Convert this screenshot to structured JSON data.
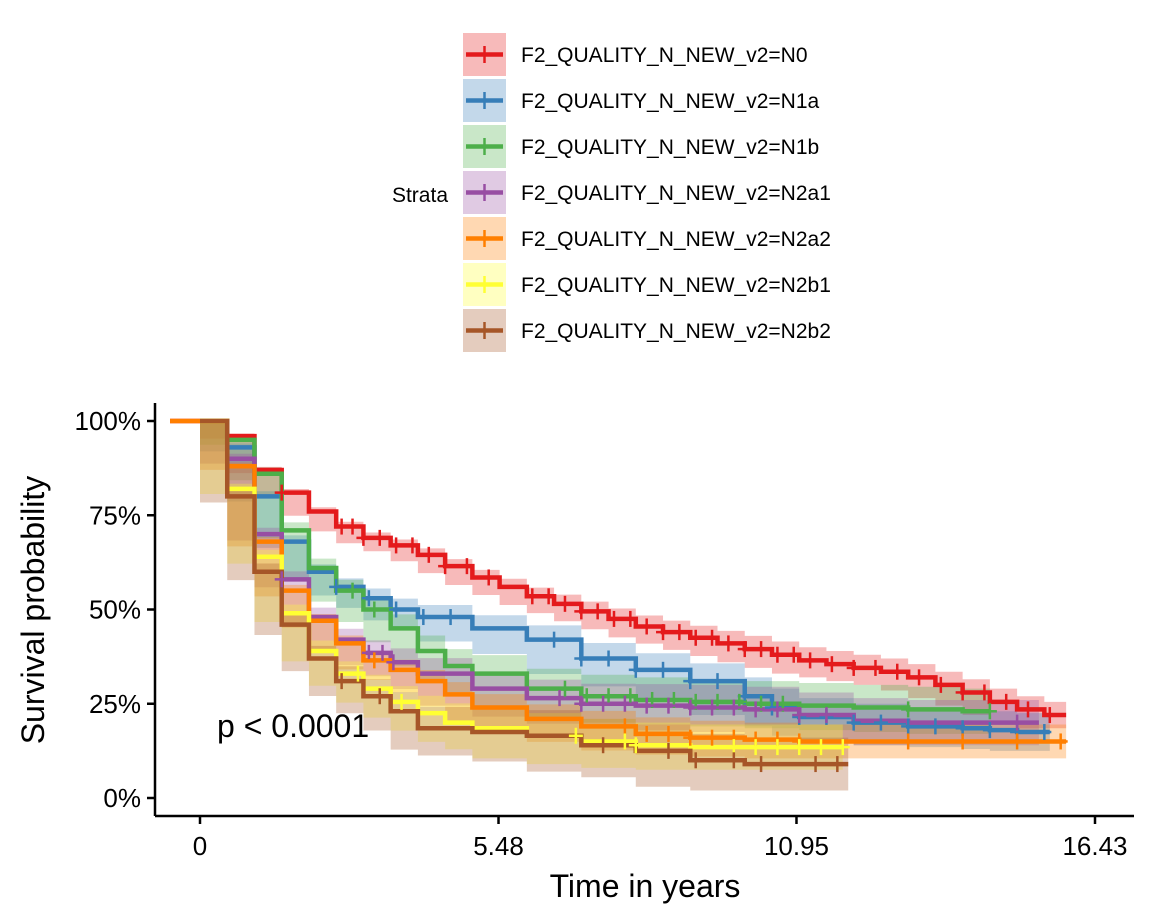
{
  "chart_data": {
    "type": "line",
    "subtype": "kaplan-meier",
    "xlabel": "Time in years",
    "ylabel": "Survival probability",
    "xlim": [
      -1.1,
      17.4
    ],
    "ylim": [
      -0.05,
      1.05
    ],
    "x_ticks": [
      0,
      5.48,
      10.95,
      16.43
    ],
    "x_tick_labels": [
      "0",
      "5.48",
      "10.95",
      "16.43"
    ],
    "y_ticks": [
      0,
      0.25,
      0.5,
      0.75,
      1.0
    ],
    "y_tick_labels": [
      "0%",
      "25%",
      "50%",
      "75%",
      "100%"
    ],
    "annotation": "p <  0.0001",
    "legend_title": "Strata",
    "legend_position": "top",
    "grid": false,
    "series": [
      {
        "name": "F2_QUALITY_N_NEW_v2=N0",
        "color": "#E41A1C",
        "points": [
          [
            -0.55,
            1.0
          ],
          [
            0,
            1.0
          ],
          [
            0.5,
            0.96
          ],
          [
            1,
            0.87
          ],
          [
            1.5,
            0.81
          ],
          [
            2,
            0.76
          ],
          [
            2.5,
            0.72
          ],
          [
            3,
            0.69
          ],
          [
            3.5,
            0.67
          ],
          [
            4,
            0.645
          ],
          [
            4.5,
            0.615
          ],
          [
            5,
            0.585
          ],
          [
            5.5,
            0.56
          ],
          [
            6,
            0.535
          ],
          [
            6.5,
            0.515
          ],
          [
            7,
            0.495
          ],
          [
            7.5,
            0.475
          ],
          [
            8,
            0.455
          ],
          [
            8.5,
            0.44
          ],
          [
            9,
            0.425
          ],
          [
            9.5,
            0.41
          ],
          [
            10,
            0.395
          ],
          [
            10.5,
            0.38
          ],
          [
            11,
            0.365
          ],
          [
            11.5,
            0.355
          ],
          [
            12,
            0.345
          ],
          [
            12.5,
            0.335
          ],
          [
            13,
            0.32
          ],
          [
            13.5,
            0.3
          ],
          [
            14,
            0.28
          ],
          [
            14.5,
            0.255
          ],
          [
            15,
            0.235
          ],
          [
            15.5,
            0.22
          ],
          [
            15.9,
            0.22
          ]
        ],
        "ci": 0.035,
        "censor_x": [
          1.5,
          2.6,
          2.8,
          3.0,
          3.3,
          3.6,
          3.9,
          4.2,
          4.5,
          4.9,
          5.3,
          6.1,
          6.4,
          6.7,
          7.0,
          7.3,
          7.6,
          7.9,
          8.2,
          8.5,
          8.8,
          9.1,
          9.4,
          9.7,
          10.0,
          10.3,
          10.6,
          10.9,
          11.2,
          11.6,
          12.0,
          12.4,
          12.8,
          13.2,
          13.6,
          14.0,
          14.4,
          14.8,
          15.2,
          15.6
        ]
      },
      {
        "name": "F2_QUALITY_N_NEW_v2=N1a",
        "color": "#377EB8",
        "points": [
          [
            0,
            1.0
          ],
          [
            0.5,
            0.93
          ],
          [
            1,
            0.8
          ],
          [
            1.5,
            0.68
          ],
          [
            2,
            0.6
          ],
          [
            2.5,
            0.56
          ],
          [
            3,
            0.53
          ],
          [
            3.5,
            0.5
          ],
          [
            4,
            0.48
          ],
          [
            5,
            0.45
          ],
          [
            6,
            0.42
          ],
          [
            7,
            0.37
          ],
          [
            8,
            0.34
          ],
          [
            9,
            0.31
          ],
          [
            10,
            0.27
          ],
          [
            10.5,
            0.24
          ],
          [
            11,
            0.215
          ],
          [
            12,
            0.2
          ],
          [
            13,
            0.19
          ],
          [
            14,
            0.185
          ],
          [
            14.5,
            0.18
          ],
          [
            15,
            0.175
          ],
          [
            15.6,
            0.175
          ]
        ],
        "ci": 0.05,
        "censor_x": [
          2.5,
          3.1,
          3.6,
          4.1,
          4.6,
          6.5,
          7.0,
          7.5,
          8.0,
          8.5,
          9.0,
          9.5,
          10.0,
          10.5,
          11.0,
          11.5,
          12.0,
          12.5,
          13.0,
          13.5,
          14.0,
          14.5,
          15.0,
          15.5
        ]
      },
      {
        "name": "F2_QUALITY_N_NEW_v2=N1b",
        "color": "#4DAF4A",
        "points": [
          [
            0,
            1.0
          ],
          [
            0.5,
            0.95
          ],
          [
            1,
            0.86
          ],
          [
            1.5,
            0.71
          ],
          [
            2,
            0.61
          ],
          [
            2.5,
            0.55
          ],
          [
            3,
            0.5
          ],
          [
            3.5,
            0.45
          ],
          [
            4,
            0.39
          ],
          [
            4.5,
            0.35
          ],
          [
            5,
            0.33
          ],
          [
            6,
            0.29
          ],
          [
            7,
            0.27
          ],
          [
            8,
            0.26
          ],
          [
            9,
            0.255
          ],
          [
            10,
            0.25
          ],
          [
            11,
            0.245
          ],
          [
            12,
            0.24
          ],
          [
            13,
            0.235
          ],
          [
            14,
            0.23
          ],
          [
            14.5,
            0.23
          ]
        ],
        "ci": 0.06,
        "censor_x": [
          2.8,
          3.2,
          6.7,
          7.1,
          7.5,
          7.9,
          8.3,
          8.7,
          9.1,
          9.5,
          9.9,
          10.3,
          10.7,
          13.0,
          14.5
        ]
      },
      {
        "name": "F2_QUALITY_N_NEW_v2=N2a1",
        "color": "#984EA3",
        "points": [
          [
            0,
            1.0
          ],
          [
            0.5,
            0.9
          ],
          [
            1,
            0.7
          ],
          [
            1.5,
            0.58
          ],
          [
            2,
            0.48
          ],
          [
            2.5,
            0.42
          ],
          [
            3,
            0.385
          ],
          [
            3.5,
            0.36
          ],
          [
            4,
            0.33
          ],
          [
            5,
            0.29
          ],
          [
            6,
            0.265
          ],
          [
            7,
            0.25
          ],
          [
            8,
            0.245
          ],
          [
            9,
            0.24
          ],
          [
            10,
            0.235
          ],
          [
            11,
            0.22
          ],
          [
            12,
            0.205
          ],
          [
            13,
            0.2
          ],
          [
            14,
            0.2
          ],
          [
            15,
            0.2
          ],
          [
            15.4,
            0.2
          ]
        ],
        "ci": 0.06,
        "censor_x": [
          1.5,
          3.1,
          3.35,
          3.55,
          6.6,
          7.0,
          7.4,
          7.8,
          8.2,
          8.6,
          9.0,
          9.4,
          9.8,
          10.2,
          10.6,
          11.0,
          11.5,
          15.0
        ]
      },
      {
        "name": "F2_QUALITY_N_NEW_v2=N2a2",
        "color": "#FF7F00",
        "points": [
          [
            -0.55,
            1.0
          ],
          [
            0,
            1.0
          ],
          [
            0.5,
            0.88
          ],
          [
            1,
            0.68
          ],
          [
            1.5,
            0.55
          ],
          [
            2,
            0.47
          ],
          [
            2.5,
            0.41
          ],
          [
            3,
            0.365
          ],
          [
            3.5,
            0.34
          ],
          [
            4,
            0.31
          ],
          [
            4.5,
            0.275
          ],
          [
            5,
            0.24
          ],
          [
            6,
            0.21
          ],
          [
            7,
            0.19
          ],
          [
            8,
            0.17
          ],
          [
            9,
            0.16
          ],
          [
            10,
            0.155
          ],
          [
            11,
            0.15
          ],
          [
            12,
            0.15
          ],
          [
            13,
            0.15
          ],
          [
            14,
            0.15
          ],
          [
            15,
            0.15
          ],
          [
            15.9,
            0.15
          ]
        ],
        "ci": 0.045,
        "censor_x": [
          3.2,
          7.8,
          8.2,
          8.6,
          9.0,
          9.4,
          9.8,
          10.2,
          10.6,
          11.0,
          13.0,
          14.0,
          15.0,
          15.8
        ]
      },
      {
        "name": "F2_QUALITY_N_NEW_v2=N2b1",
        "color": "#FFFF33",
        "points": [
          [
            0,
            1.0
          ],
          [
            0.5,
            0.82
          ],
          [
            1,
            0.64
          ],
          [
            1.5,
            0.49
          ],
          [
            2,
            0.39
          ],
          [
            2.5,
            0.33
          ],
          [
            3,
            0.29
          ],
          [
            3.5,
            0.255
          ],
          [
            4,
            0.225
          ],
          [
            4.5,
            0.2
          ],
          [
            5,
            0.185
          ],
          [
            6,
            0.165
          ],
          [
            7,
            0.15
          ],
          [
            8,
            0.14
          ],
          [
            9,
            0.135
          ],
          [
            10,
            0.135
          ],
          [
            11,
            0.135
          ],
          [
            11.8,
            0.135
          ]
        ],
        "ci": 0.06,
        "censor_x": [
          2.9,
          3.7,
          6.9,
          7.8,
          8.0,
          9.8,
          10.2,
          10.6,
          11.0,
          11.4,
          11.8
        ]
      },
      {
        "name": "F2_QUALITY_N_NEW_v2=N2b2",
        "color": "#A65628",
        "points": [
          [
            0,
            1.0
          ],
          [
            0.5,
            0.8
          ],
          [
            1,
            0.6
          ],
          [
            1.5,
            0.46
          ],
          [
            2,
            0.37
          ],
          [
            2.5,
            0.31
          ],
          [
            3,
            0.27
          ],
          [
            3.5,
            0.23
          ],
          [
            4,
            0.185
          ],
          [
            5,
            0.175
          ],
          [
            6,
            0.165
          ],
          [
            7,
            0.14
          ],
          [
            8,
            0.125
          ],
          [
            9,
            0.1
          ],
          [
            10,
            0.09
          ],
          [
            11,
            0.09
          ],
          [
            11.9,
            0.09
          ]
        ],
        "ci": 0.07,
        "censor_x": [
          2.6,
          3.3,
          7.4,
          8.6,
          9.1,
          9.8,
          10.3,
          11.3,
          11.7
        ]
      }
    ]
  }
}
